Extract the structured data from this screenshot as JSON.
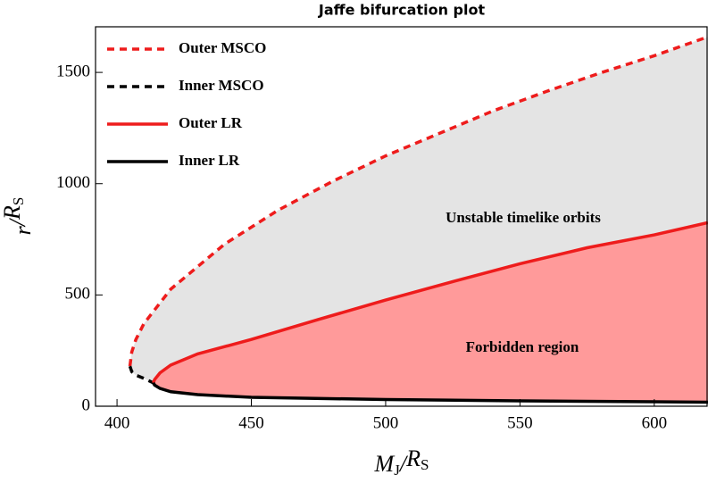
{
  "chart_data": {
    "type": "line",
    "title": "Jaffe bifurcation plot",
    "xlabel": [
      "M",
      "J",
      "/",
      "R",
      "S"
    ],
    "ylabel": [
      "r",
      "/",
      "R",
      "S"
    ],
    "xlim": [
      392,
      620
    ],
    "ylim": [
      0,
      1705
    ],
    "xticks": [
      400,
      450,
      500,
      550,
      600
    ],
    "yticks": [
      0,
      500,
      1000,
      1500
    ],
    "series": [
      {
        "name": "Outer MSCO",
        "color": "#ee1c1c",
        "dash": true,
        "x": [
          404.8,
          405.5,
          407,
          410,
          420,
          440,
          460,
          480,
          500,
          520,
          540,
          560,
          580,
          600,
          620
        ],
        "values": [
          180,
          244,
          299,
          371,
          526,
          728,
          881,
          1009,
          1125,
          1226,
          1327,
          1415,
          1498,
          1575,
          1660
        ]
      },
      {
        "name": "Inner MSCO",
        "color": "#000000",
        "dash": true,
        "x": [
          404.8,
          405.5,
          407,
          410,
          413.5
        ],
        "values": [
          180,
          155,
          140,
          125,
          105
        ]
      },
      {
        "name": "Outer LR",
        "color": "#ee1c1c",
        "dash": false,
        "x": [
          413.5,
          414,
          416,
          420,
          430,
          450,
          475,
          500,
          525,
          550,
          575,
          600,
          620
        ],
        "values": [
          105,
          120,
          150,
          185,
          235,
          300,
          390,
          477,
          560,
          640,
          712,
          770,
          825
        ]
      },
      {
        "name": "Inner LR",
        "color": "#000000",
        "dash": false,
        "x": [
          413.5,
          414,
          416,
          420,
          430,
          450,
          500,
          550,
          600,
          620
        ],
        "values": [
          105,
          95,
          80,
          65,
          52,
          40,
          30,
          24,
          20,
          18
        ]
      }
    ],
    "annotations": [
      "Unstable timelike orbits",
      "Forbidden region"
    ],
    "fill_colors": [
      "#e4e4e4",
      "#ff9a9a"
    ]
  }
}
